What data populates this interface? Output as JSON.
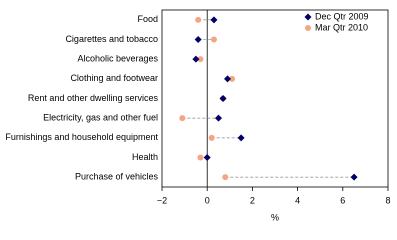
{
  "chart_data": {
    "type": "dot",
    "categories": [
      "Food",
      "Cigarettes and tobacco",
      "Alcoholic beverages",
      "Clothing and footwear",
      "Rent and other dwelling services",
      "Electricity, gas and other fuel",
      "Furnishings and household equipment",
      "Health",
      "Purchase of vehicles"
    ],
    "series": [
      {
        "name": "Dec Qtr 2009",
        "color": "#000066",
        "values": [
          0.3,
          -0.4,
          -0.5,
          0.9,
          0.7,
          0.5,
          1.5,
          0.0,
          6.5
        ]
      },
      {
        "name": "Mar Qtr 2010",
        "color": "#f4a582",
        "values": [
          -0.4,
          0.3,
          -0.3,
          1.1,
          0.7,
          -1.1,
          0.2,
          -0.3,
          0.8
        ]
      }
    ],
    "xlabel": "%",
    "xlim": [
      -2,
      8
    ],
    "xticks": [
      {
        "value": -2,
        "label": "−2"
      },
      0,
      2,
      4,
      6,
      8
    ],
    "legend": "top-right"
  }
}
